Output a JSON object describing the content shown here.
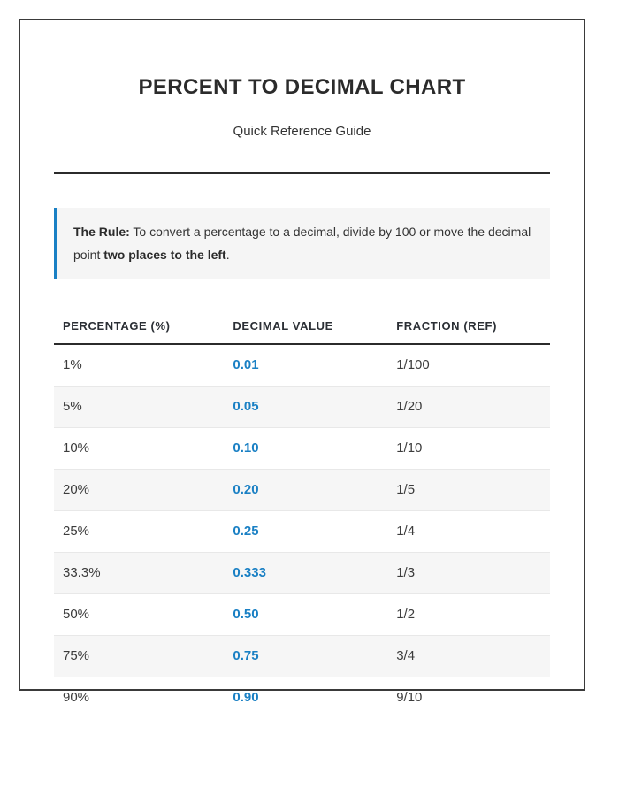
{
  "page": {
    "title": "PERCENT TO DECIMAL CHART",
    "subtitle": "Quick Reference Guide"
  },
  "rule": {
    "label": "The Rule:",
    "text": " To convert a percentage to a decimal, divide by 100 or move the decimal point ",
    "bold": "two places to the left",
    "suffix": "."
  },
  "chart_data": {
    "type": "table",
    "title": "PERCENT TO DECIMAL CHART",
    "columns": [
      "PERCENTAGE (%)",
      "DECIMAL VALUE",
      "FRACTION (REF)"
    ],
    "rows": [
      [
        "1%",
        "0.01",
        "1/100"
      ],
      [
        "5%",
        "0.05",
        "1/20"
      ],
      [
        "10%",
        "0.10",
        "1/10"
      ],
      [
        "20%",
        "0.20",
        "1/5"
      ],
      [
        "25%",
        "0.25",
        "1/4"
      ],
      [
        "33.3%",
        "0.333",
        "1/3"
      ],
      [
        "50%",
        "0.50",
        "1/2"
      ],
      [
        "75%",
        "0.75",
        "3/4"
      ],
      [
        "90%",
        "0.90",
        "9/10"
      ]
    ]
  },
  "colors": {
    "accent_blue": "#1a80c4",
    "page_border": "#3a3a3a",
    "alt_row_bg": "#f6f6f6",
    "callout_bg": "#f5f5f5",
    "heading_text": "#2b2b2b",
    "body_text": "#3c3c3c"
  }
}
